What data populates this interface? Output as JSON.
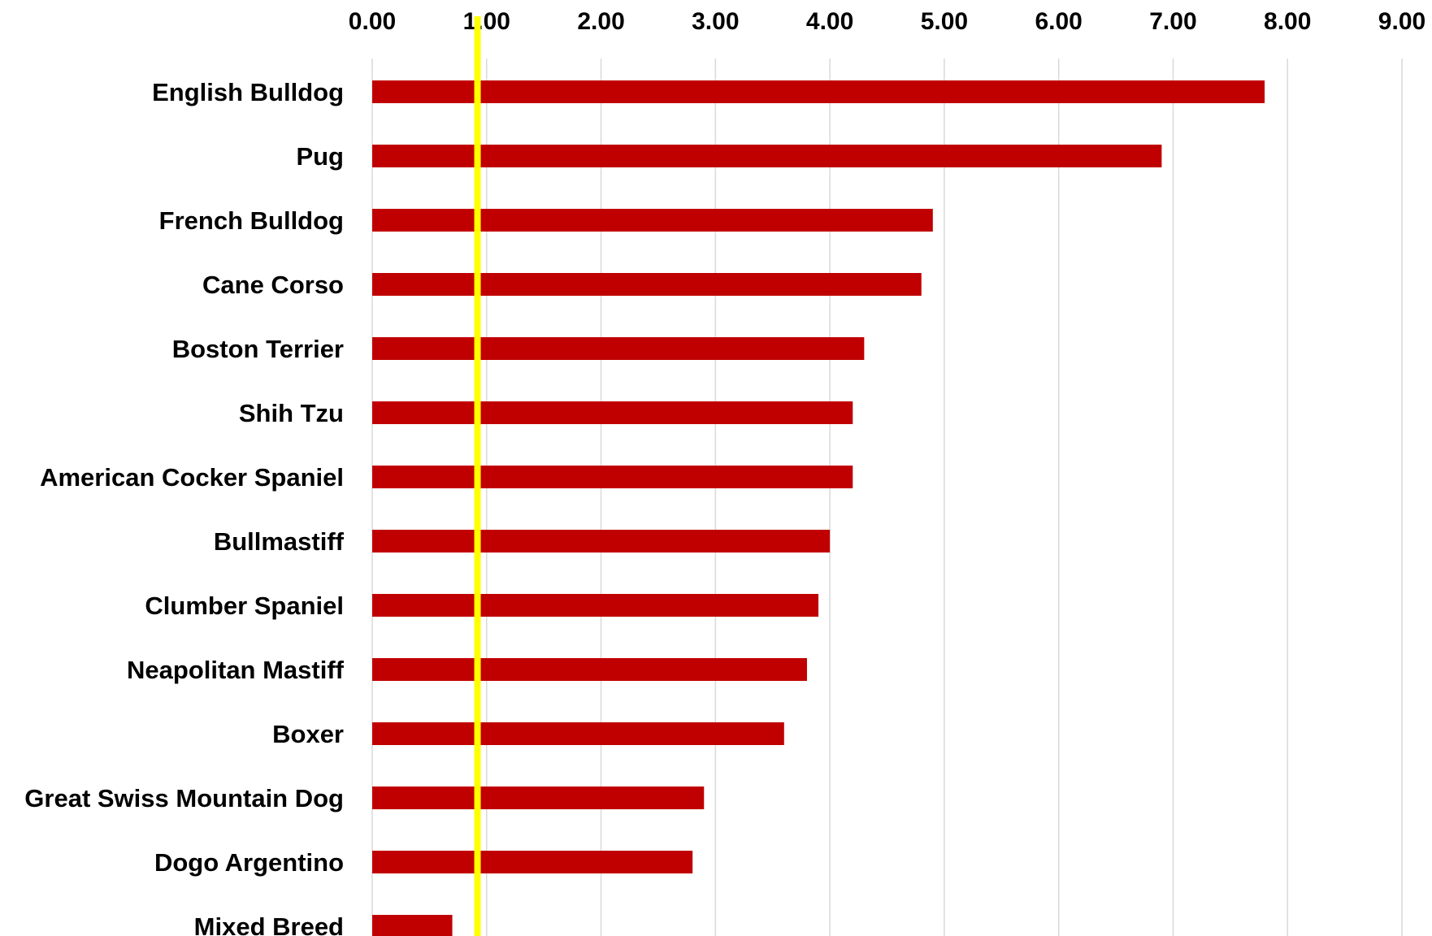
{
  "chart_data": {
    "type": "bar",
    "orientation": "horizontal",
    "title": "",
    "xlabel": "",
    "ylabel": "",
    "xlim": [
      0,
      9
    ],
    "x_ticks": [
      "0.00",
      "1.00",
      "2.00",
      "3.00",
      "4.00",
      "5.00",
      "6.00",
      "7.00",
      "8.00",
      "9.00"
    ],
    "x_axis_position": "top",
    "grid": true,
    "legend": "none",
    "categories": [
      "English Bulldog",
      "Pug",
      "French Bulldog",
      "Cane Corso",
      "Boston Terrier",
      "Shih Tzu",
      "American Cocker Spaniel",
      "Bullmastiff",
      "Clumber Spaniel",
      "Neapolitan Mastiff",
      "Boxer",
      "Great Swiss Mountain Dog",
      "Dogo Argentino",
      "Mixed Breed"
    ],
    "values": [
      7.8,
      6.9,
      4.9,
      4.8,
      4.3,
      4.2,
      4.2,
      4.0,
      3.9,
      3.8,
      3.6,
      2.9,
      2.8,
      0.7
    ],
    "reference_line": {
      "value": 0.92,
      "color": "#FFFF00"
    },
    "colors": {
      "bar": "#C00000",
      "grid": "#D9D9D9",
      "text": "#000000"
    }
  }
}
